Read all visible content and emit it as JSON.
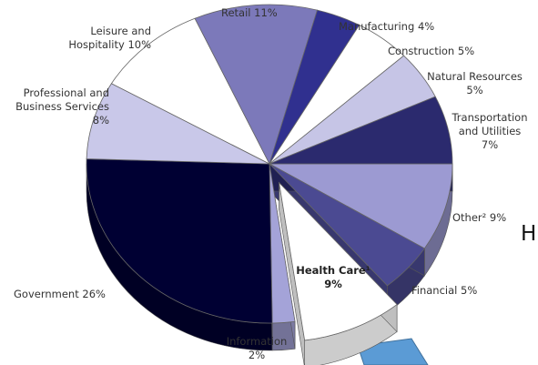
{
  "chart_data": {
    "type": "pie",
    "categories": [
      "Other²",
      "Financial",
      "Health Care¹",
      "Information",
      "Government",
      "Professional and Business Services",
      "Leisure and Hospitality",
      "Retail",
      "Manufacturing",
      "Construction",
      "Natural Resources",
      "Transportation and Utilities"
    ],
    "values": [
      9,
      5,
      9,
      2,
      26,
      8,
      10,
      11,
      4,
      5,
      5,
      7
    ],
    "value_labels": [
      "9%",
      "5%",
      "9%",
      "2%",
      "26%",
      "8%",
      "10%",
      "11%",
      "4%",
      "5%",
      "5%",
      "7%"
    ],
    "colors": [
      "#9c9ad2",
      "#4b4a92",
      "#ffffff",
      "#a4a3d8",
      "#000033",
      "#c9c8e9",
      "#ffffff",
      "#7c79ba",
      "#30308f",
      "#ffffff",
      "#c6c5e6",
      "#2b2a6e"
    ],
    "exploded": [
      false,
      false,
      true,
      false,
      false,
      false,
      false,
      false,
      false,
      false,
      false,
      false
    ],
    "annotations": [
      "H"
    ]
  }
}
